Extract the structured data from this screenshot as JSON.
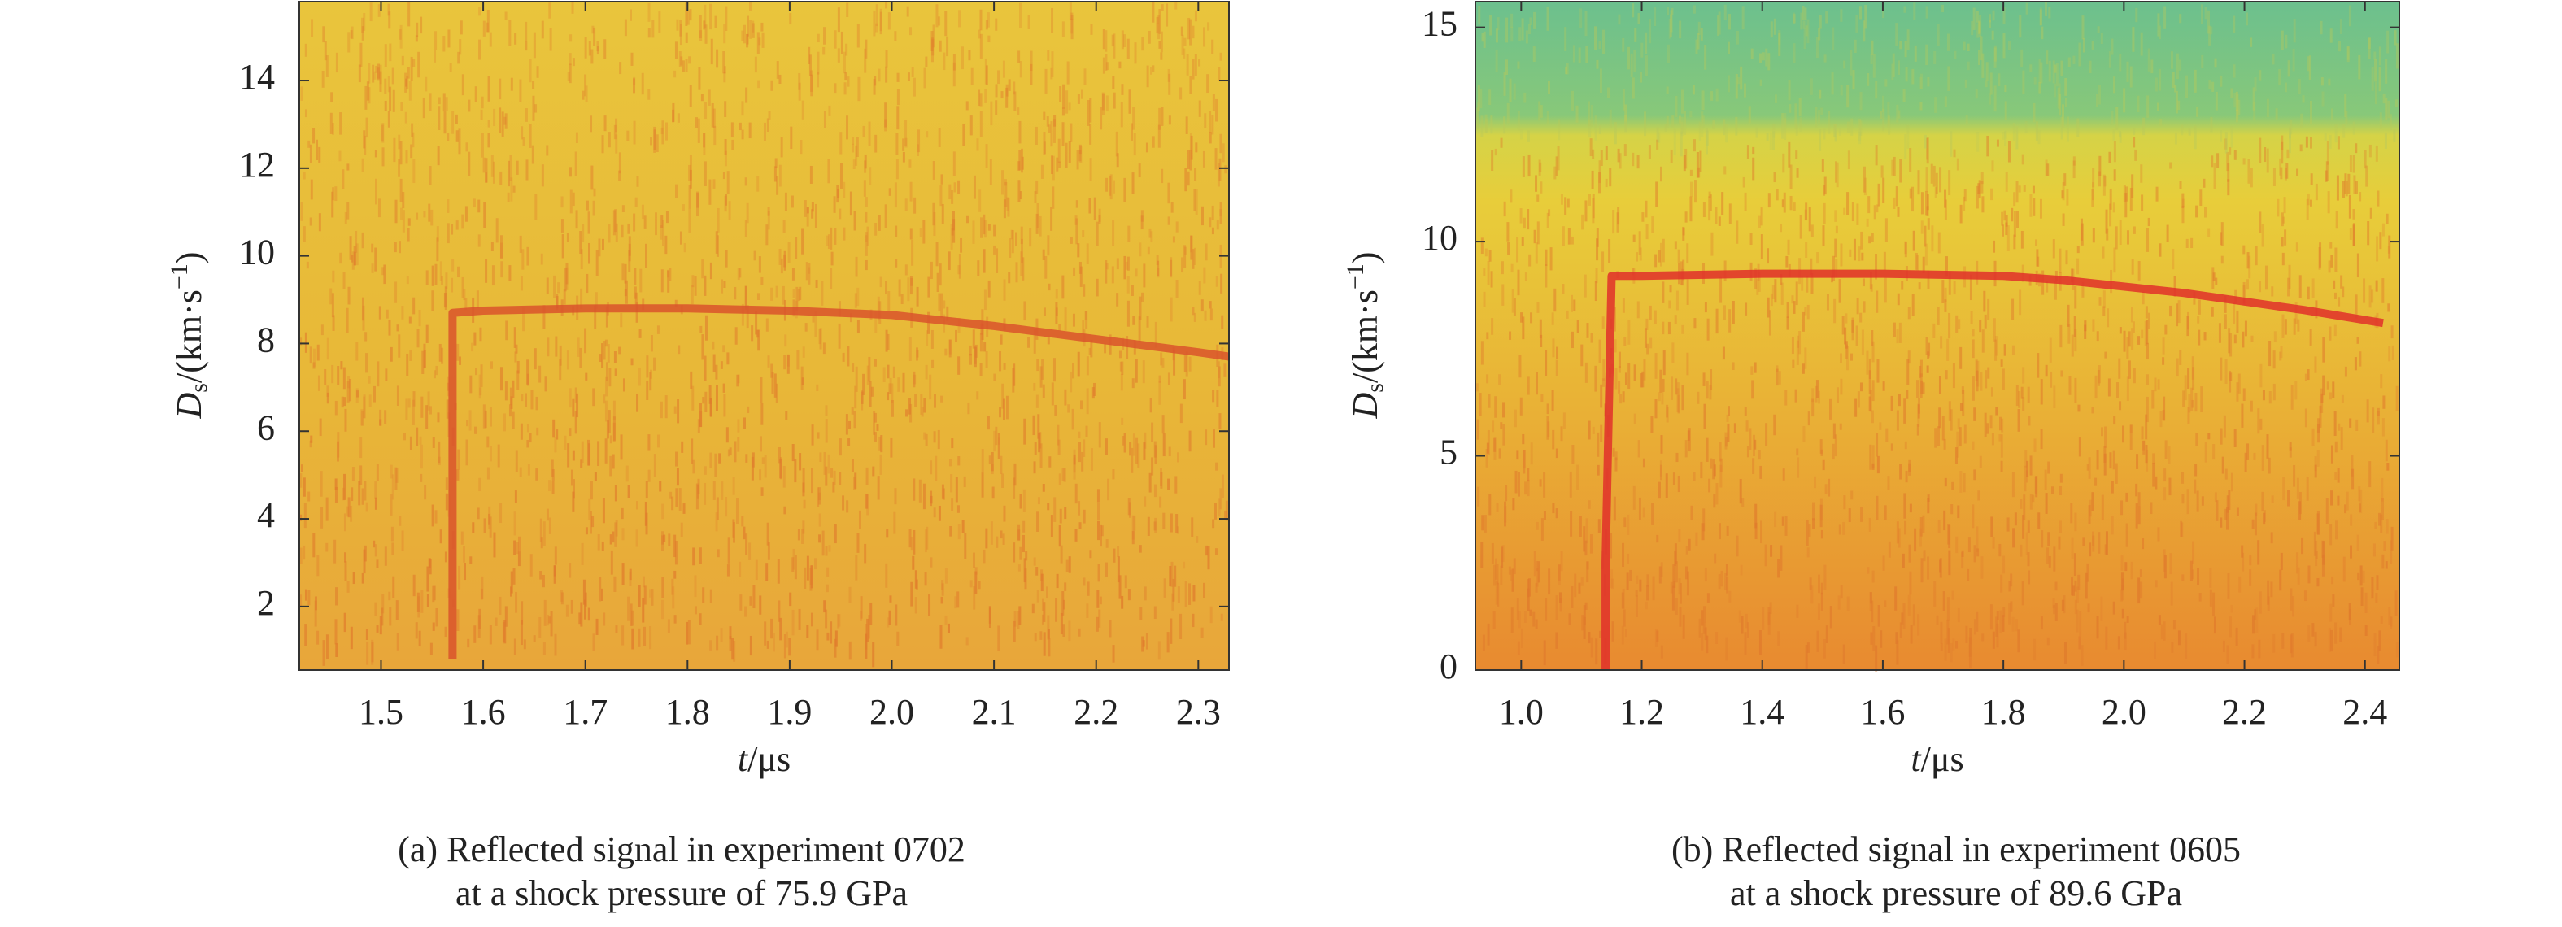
{
  "chart_data": [
    {
      "type": "line",
      "ylabel": {
        "symbol": "D",
        "subscript": "s",
        "unit": "/(km·s",
        "superscript": "−1",
        "close": ")"
      },
      "xlabel": {
        "symbol": "t",
        "unit": "/μs"
      },
      "caption": [
        "(a) Reflected signal in experiment 0702",
        "at a shock pressure of 75.9 GPa"
      ],
      "x": [
        1.57,
        1.57,
        1.6,
        1.7,
        1.8,
        1.9,
        2.0,
        2.1,
        2.2,
        2.3,
        2.33
      ],
      "values": [
        0.8,
        8.7,
        8.75,
        8.8,
        8.8,
        8.75,
        8.65,
        8.4,
        8.1,
        7.8,
        7.7
      ],
      "color": "#d9532c",
      "xlim": [
        1.42,
        2.33
      ],
      "ylim": [
        0.55,
        15.8
      ],
      "xticks": [
        1.5,
        1.6,
        1.7,
        1.8,
        1.9,
        {
          "value": 2,
          "label": "2.0"
        },
        2.1,
        2.2,
        2.3
      ],
      "yticks": [
        2,
        4,
        6,
        8,
        10,
        12,
        14
      ]
    },
    {
      "type": "line",
      "ylabel": {
        "symbol": "D",
        "subscript": "s",
        "unit": "/(km·s",
        "superscript": "−1",
        "close": ")"
      },
      "xlabel": {
        "symbol": "t",
        "unit": "/μs"
      },
      "caption": [
        "(b) Reflected signal in experiment 0605",
        "at a shock pressure of 89.6 GPa"
      ],
      "x": [
        1.14,
        1.14,
        1.15,
        1.2,
        1.4,
        1.6,
        1.8,
        1.9,
        2.1,
        2.3,
        2.43
      ],
      "values": [
        0,
        2.5,
        9.2,
        9.2,
        9.25,
        9.25,
        9.2,
        9.1,
        8.8,
        8.4,
        8.1
      ],
      "color": "#e0302a",
      "xlim": [
        0.924,
        2.457
      ],
      "ylim": [
        0,
        15.6
      ],
      "xticks": [
        {
          "value": 1,
          "label": "1.0"
        },
        1.2,
        1.4,
        1.6,
        1.8,
        {
          "value": 2,
          "label": "2.0"
        },
        2.2,
        2.4
      ],
      "yticks": [
        0,
        5,
        10,
        15
      ]
    }
  ]
}
